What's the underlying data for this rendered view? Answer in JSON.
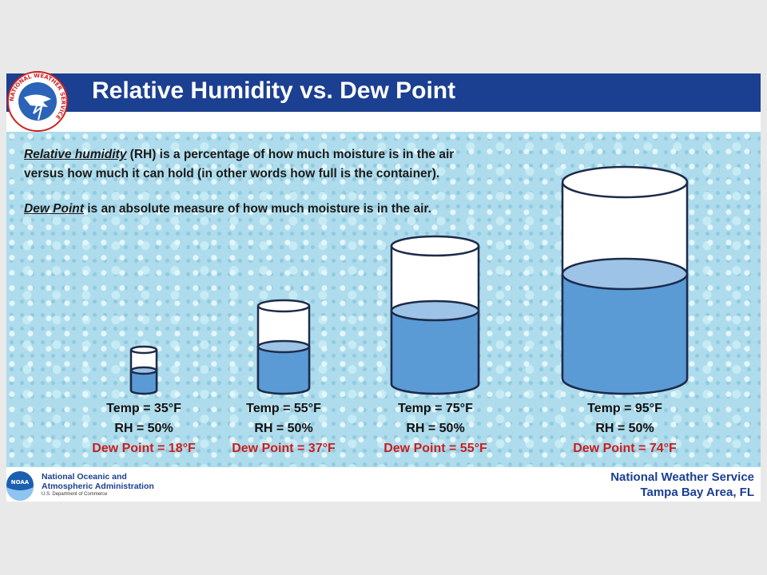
{
  "header": {
    "title": "Relative Humidity vs. Dew Point",
    "logo_text": "NATIONAL WEATHER SERVICE"
  },
  "intro": [
    {
      "term": "Relative humidity",
      "lines": [
        "(RH) is a percentage of how much moisture is in the air",
        "versus how much it can hold (in other words how full is the container)."
      ]
    },
    {
      "term": "Dew Point",
      "lines": [
        "is an absolute measure of how much moisture is in the air."
      ]
    }
  ],
  "containers": [
    {
      "temp": "Temp = 35°F",
      "rh": "RH = 50%",
      "dew_point": "Dew Point = 18°F"
    },
    {
      "temp": "Temp = 55°F",
      "rh": "RH = 50%",
      "dew_point": "Dew Point = 37°F"
    },
    {
      "temp": "Temp = 75°F",
      "rh": "RH = 50%",
      "dew_point": "Dew Point = 55°F"
    },
    {
      "temp": "Temp = 95°F",
      "rh": "RH = 50%",
      "dew_point": "Dew Point = 74°F"
    }
  ],
  "footer": {
    "noaa_logo": "NOAA",
    "noaa_lines": [
      "National Oceanic and",
      "Atmospheric Administration"
    ],
    "noaa_sub": "U.S. Department of Commerce",
    "office_lines": [
      "National Weather Service",
      "Tampa Bay Area, FL"
    ]
  }
}
